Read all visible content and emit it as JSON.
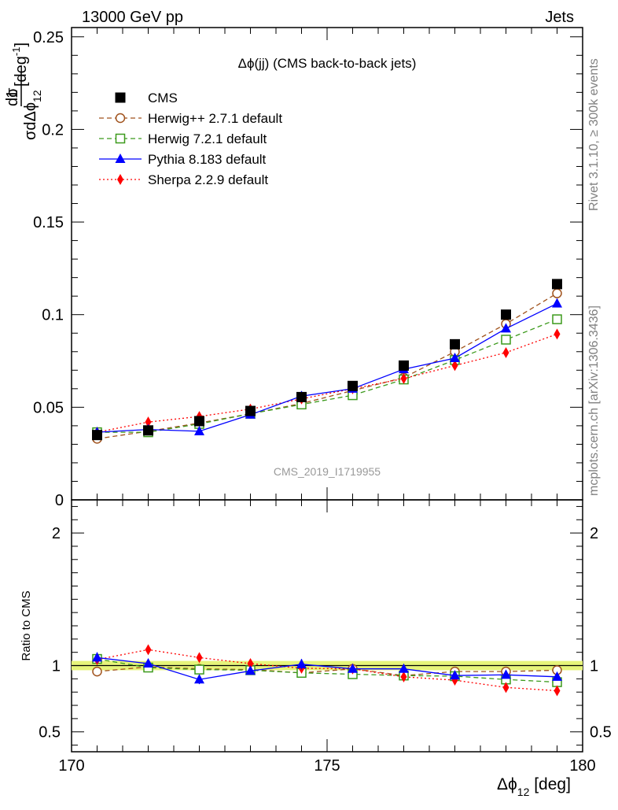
{
  "header": {
    "left": "13000 GeV pp",
    "right": "Jets"
  },
  "side_text": {
    "rivet": "Rivet 3.1.10, ≥ 300k events",
    "mcplots": "mcplots.cern.ch [arXiv:1306.3436]"
  },
  "watermark": "CMS_2019_I1719955",
  "colors": {
    "data": "#000000",
    "herwigpp": "#a0521c",
    "herwig7": "#3c9a1c",
    "pythia": "#0000ff",
    "sherpa": "#ff0000",
    "band": "#e6f47a"
  },
  "chart_data": {
    "type": "line",
    "title": "Δϕ(jj) (CMS back-to-back jets)",
    "xlabel": "Δϕ 12 [deg]",
    "ylabel": "1/σ dσ/dΔϕ12 [deg^-1]",
    "ratio_ylabel": "Ratio to CMS",
    "xlim": [
      170,
      180
    ],
    "ylim": [
      0,
      0.255
    ],
    "ratio_ylim": [
      0.35,
      2.25
    ],
    "x_ticks": [
      "170",
      "175",
      "180"
    ],
    "y_ticks": [
      "0",
      "0.05",
      "0.1",
      "0.15",
      "0.2",
      "0.25"
    ],
    "ratio_ticks": [
      "0.5",
      "1",
      "2"
    ],
    "x": [
      170.5,
      171.5,
      172.5,
      173.5,
      174.5,
      175.5,
      176.5,
      177.5,
      178.5,
      179.5
    ],
    "series": [
      {
        "name": "CMS",
        "key": "data",
        "marker": "square-filled",
        "line": "none",
        "values": [
          0.035,
          0.0375,
          0.0425,
          0.048,
          0.0555,
          0.0615,
          0.0725,
          0.084,
          0.1,
          0.1165
        ]
      },
      {
        "name": "Herwig++ 2.7.1 default",
        "key": "herwigpp",
        "marker": "circle-open",
        "line": "dashed",
        "values": [
          0.033,
          0.037,
          0.0415,
          0.0465,
          0.052,
          0.059,
          0.066,
          0.08,
          0.095,
          0.1115
        ],
        "ratio": [
          0.955,
          0.99,
          0.975,
          0.97,
          0.945,
          0.975,
          0.925,
          0.955,
          0.955,
          0.965
        ]
      },
      {
        "name": "Herwig 7.2.1 default",
        "key": "herwig7",
        "marker": "square-open",
        "line": "dashed",
        "values": [
          0.0365,
          0.0365,
          0.041,
          0.0465,
          0.0515,
          0.0565,
          0.065,
          0.0755,
          0.0865,
          0.0975
        ],
        "ratio": [
          1.05,
          0.985,
          0.97,
          0.965,
          0.945,
          0.935,
          0.925,
          0.92,
          0.895,
          0.875
        ]
      },
      {
        "name": "Pythia 8.183 default",
        "key": "pythia",
        "marker": "triangle-filled",
        "line": "solid",
        "values": [
          0.0365,
          0.038,
          0.037,
          0.046,
          0.056,
          0.06,
          0.0705,
          0.0765,
          0.0925,
          0.106
        ],
        "errors": [
          0.0025,
          0.0012,
          0.001,
          0.0012,
          0.0025,
          0.001,
          0.0012,
          0.001,
          0.001,
          0.001
        ],
        "ratio": [
          1.06,
          1.015,
          0.895,
          0.96,
          1.01,
          0.975,
          0.975,
          0.925,
          0.93,
          0.915
        ],
        "ratio_errors": [
          0.04,
          0.02,
          0.035,
          0.025,
          0.04,
          0.015,
          0.02,
          0.015,
          0.015,
          0.012
        ]
      },
      {
        "name": "Sherpa 2.2.9 default",
        "key": "sherpa",
        "marker": "diamond-filled",
        "line": "dotted",
        "values": [
          0.0365,
          0.042,
          0.045,
          0.049,
          0.0545,
          0.06,
          0.0655,
          0.0725,
          0.0795,
          0.0895
        ],
        "ratio": [
          1.045,
          1.12,
          1.06,
          1.015,
          0.98,
          0.975,
          0.915,
          0.89,
          0.835,
          0.81
        ]
      }
    ]
  }
}
